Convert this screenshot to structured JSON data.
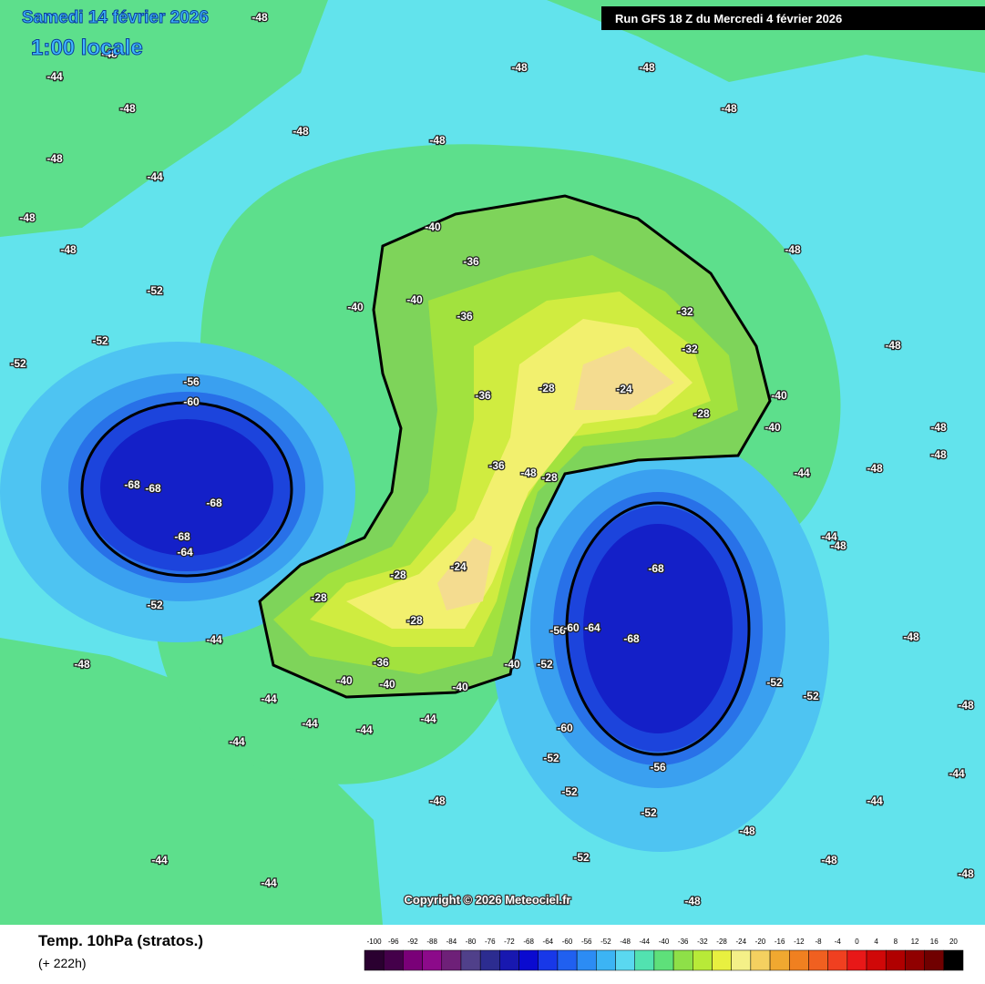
{
  "map": {
    "title": "Samedi 14 février 2026",
    "local_time": "1:00 locale",
    "run": "Run GFS 18 Z du Mercredi 4 février 2026",
    "copyright": "Copyright © 2026 Meteociel.fr",
    "parameter": "Temp. 10hPa (stratos.)",
    "lead_time": "(+ 222h)",
    "contour_labels": [
      -48,
      -48,
      -44,
      -48,
      -48,
      -48,
      -48,
      -48,
      -48,
      -48,
      -44,
      -48,
      -48,
      -48,
      -48,
      -48,
      -52,
      -52,
      -52,
      -56,
      -60,
      -68,
      -68,
      -68,
      -68,
      -64,
      -52,
      -48,
      -44,
      -44,
      -44,
      -44,
      -44,
      -44,
      -40,
      -40,
      -40,
      -36,
      -36,
      -36,
      -36,
      -32,
      -32,
      -28,
      -24,
      -28,
      -40,
      -40,
      -28,
      -28,
      -24,
      -28,
      -28,
      -36,
      -40,
      -40,
      -40,
      -40,
      -52,
      -56,
      -60,
      -64,
      -68,
      -68,
      -52,
      -52,
      -60,
      -56,
      -52,
      -52,
      -52,
      -52,
      -48,
      -48,
      -48,
      -48,
      -48,
      -44,
      -44,
      -44,
      -44,
      -48,
      -48,
      -48,
      -48,
      -48,
      -48,
      -44,
      -44
    ],
    "colorbar": {
      "labels": [
        -100,
        -96,
        -92,
        -88,
        -84,
        -80,
        -76,
        -72,
        -68,
        -64,
        -60,
        -56,
        -52,
        -48,
        -44,
        -40,
        -36,
        -32,
        -28,
        -24,
        -20,
        -16,
        -12,
        -8,
        -4,
        0,
        4,
        8,
        12,
        16,
        20
      ],
      "colors": [
        "#2a0030",
        "#44004a",
        "#7a0078",
        "#8c0a8a",
        "#6e2078",
        "#50408a",
        "#2c2c90",
        "#1818b0",
        "#0a0ad0",
        "#1838e8",
        "#2060f0",
        "#2c8cf4",
        "#3cb4f4",
        "#5ad8f0",
        "#52e2b0",
        "#5ee07a",
        "#8ee048",
        "#b8ea38",
        "#e8f040",
        "#f4f088",
        "#f4d060",
        "#f0a830",
        "#f08020",
        "#f06020",
        "#f04020",
        "#e81818",
        "#d00808",
        "#b00000",
        "#900000",
        "#700000",
        "#000000"
      ]
    }
  }
}
